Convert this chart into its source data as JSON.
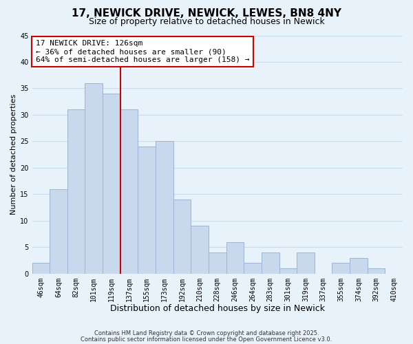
{
  "title": "17, NEWICK DRIVE, NEWICK, LEWES, BN8 4NY",
  "subtitle": "Size of property relative to detached houses in Newick",
  "xlabel": "Distribution of detached houses by size in Newick",
  "ylabel": "Number of detached properties",
  "bar_labels": [
    "46sqm",
    "64sqm",
    "82sqm",
    "101sqm",
    "119sqm",
    "137sqm",
    "155sqm",
    "173sqm",
    "192sqm",
    "210sqm",
    "228sqm",
    "246sqm",
    "264sqm",
    "283sqm",
    "301sqm",
    "319sqm",
    "337sqm",
    "355sqm",
    "374sqm",
    "392sqm",
    "410sqm"
  ],
  "bar_values": [
    2,
    16,
    31,
    36,
    34,
    31,
    24,
    25,
    14,
    9,
    4,
    6,
    2,
    4,
    1,
    4,
    0,
    2,
    3,
    1,
    0
  ],
  "bar_color": "#c8d9ee",
  "bar_edge_color": "#9bb5d4",
  "grid_color": "#c8ddf0",
  "background_color": "#e8f2fa",
  "vline_x": 4.5,
  "vline_color": "#cc0000",
  "annotation_title": "17 NEWICK DRIVE: 126sqm",
  "annotation_line1": "← 36% of detached houses are smaller (90)",
  "annotation_line2": "64% of semi-detached houses are larger (158) →",
  "annotation_box_facecolor": "#ffffff",
  "annotation_box_edgecolor": "#cc0000",
  "ylim": [
    0,
    45
  ],
  "yticks": [
    0,
    5,
    10,
    15,
    20,
    25,
    30,
    35,
    40,
    45
  ],
  "footer1": "Contains HM Land Registry data © Crown copyright and database right 2025.",
  "footer2": "Contains public sector information licensed under the Open Government Licence v3.0.",
  "title_fontsize": 11,
  "subtitle_fontsize": 9,
  "xlabel_fontsize": 9,
  "ylabel_fontsize": 8,
  "tick_fontsize": 7,
  "annotation_fontsize": 8,
  "footer_fontsize": 6
}
